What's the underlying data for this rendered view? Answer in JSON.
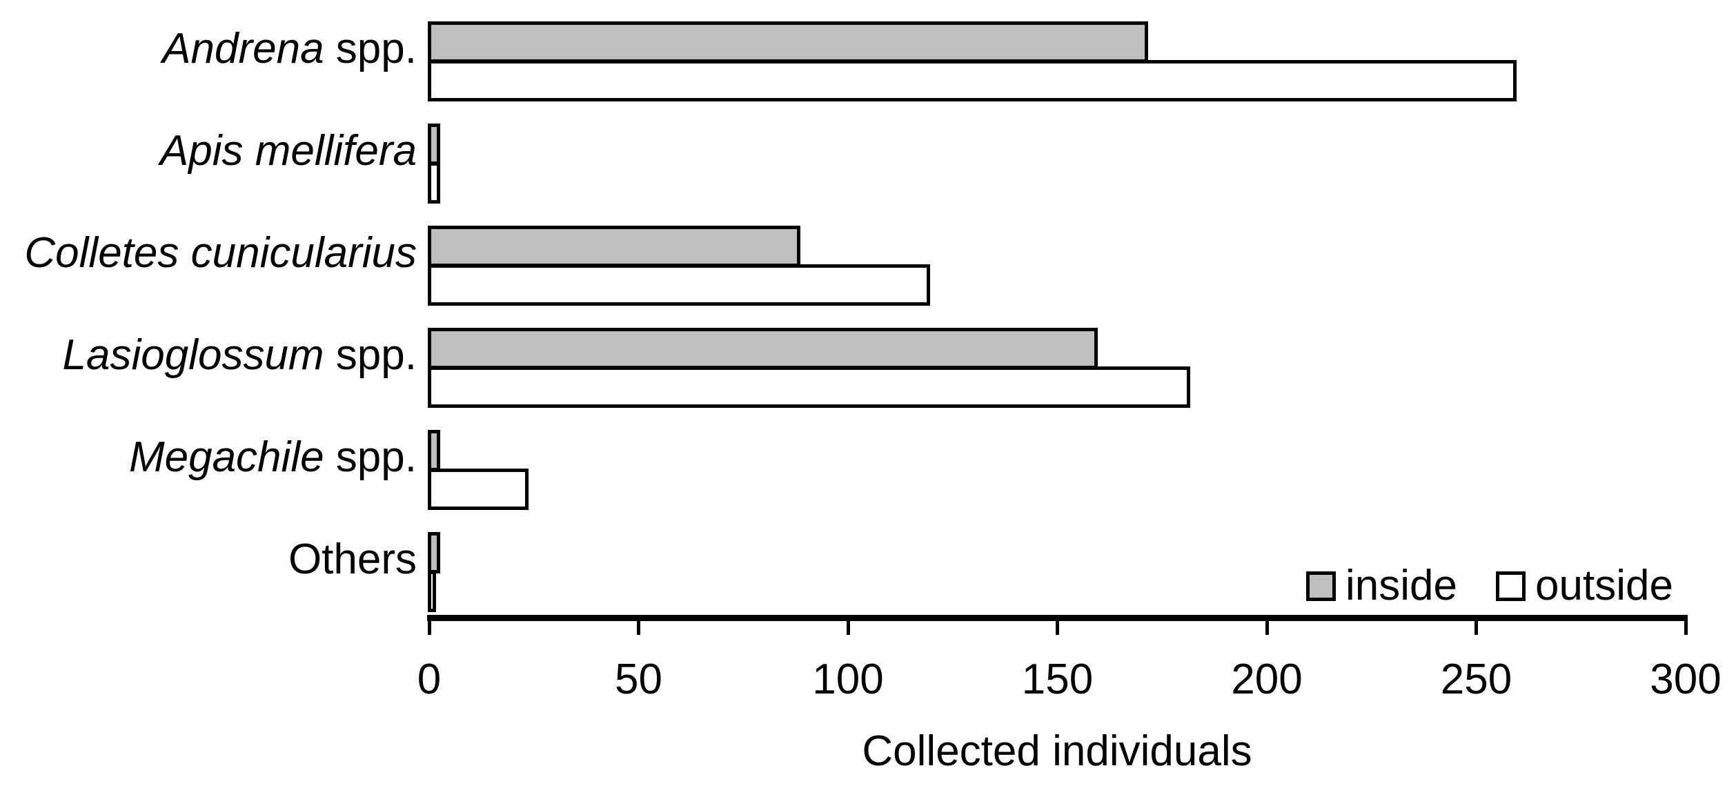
{
  "chart_data": {
    "type": "bar",
    "orientation": "horizontal",
    "title": "",
    "xlabel": "Collected individuals",
    "ylabel": "",
    "xlim": [
      0,
      300
    ],
    "x_ticks": [
      0,
      50,
      100,
      150,
      200,
      250,
      300
    ],
    "x_tick_labels": [
      "0",
      "50",
      "100",
      "150",
      "200",
      "250",
      "300"
    ],
    "grid": false,
    "legend_position": "inside-bottom-right",
    "categories": [
      {
        "name": "Andrena spp.",
        "italic_part": "Andrena",
        "regular_part": " spp."
      },
      {
        "name": "Apis mellifera",
        "italic_part": "Apis mellifera",
        "regular_part": ""
      },
      {
        "name": "Colletes cunicularius",
        "italic_part": "Colletes cunicularius",
        "regular_part": ""
      },
      {
        "name": "Lasioglossum spp.",
        "italic_part": "Lasioglossum",
        "regular_part": " spp."
      },
      {
        "name": "Megachile spp.",
        "italic_part": "Megachile",
        "regular_part": " spp."
      },
      {
        "name": "Others",
        "italic_part": "",
        "regular_part": "Others"
      }
    ],
    "series": [
      {
        "name": "inside",
        "fill": "#bfbfbf",
        "border": "#000000",
        "values": [
          172,
          3,
          89,
          160,
          3,
          3
        ]
      },
      {
        "name": "outside",
        "fill": "#ffffff",
        "border": "#000000",
        "values": [
          260,
          3,
          120,
          182,
          24,
          2
        ]
      }
    ]
  },
  "colors": {
    "background": "#ffffff",
    "axis": "#000000",
    "text": "#000000"
  }
}
